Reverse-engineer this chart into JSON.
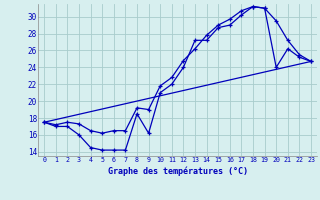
{
  "xlabel": "Graphe des températures (°C)",
  "background_color": "#d7efef",
  "grid_color": "#a8cccc",
  "line_color": "#0000bb",
  "ylim": [
    13.5,
    31.5
  ],
  "xlim": [
    -0.5,
    23.5
  ],
  "yticks": [
    14,
    16,
    18,
    20,
    22,
    24,
    26,
    28,
    30
  ],
  "xticks": [
    0,
    1,
    2,
    3,
    4,
    5,
    6,
    7,
    8,
    9,
    10,
    11,
    12,
    13,
    14,
    15,
    16,
    17,
    18,
    19,
    20,
    21,
    22,
    23
  ],
  "line1_x": [
    0,
    1,
    2,
    3,
    4,
    5,
    6,
    7,
    8,
    9,
    10,
    11,
    12,
    13,
    14,
    15,
    16,
    17,
    18,
    19,
    20,
    21,
    22,
    23
  ],
  "line1_y": [
    17.5,
    17.0,
    17.0,
    16.0,
    14.5,
    14.2,
    14.2,
    14.2,
    18.5,
    16.2,
    21.0,
    22.0,
    24.0,
    27.2,
    27.2,
    28.7,
    29.0,
    30.2,
    31.2,
    31.0,
    29.5,
    27.2,
    25.5,
    24.7
  ],
  "line2_x": [
    0,
    1,
    2,
    3,
    4,
    5,
    6,
    7,
    8,
    9,
    10,
    11,
    12,
    13,
    14,
    15,
    16,
    17,
    18,
    19,
    20,
    21,
    22,
    23
  ],
  "line2_y": [
    17.5,
    17.2,
    17.5,
    17.3,
    16.5,
    16.2,
    16.5,
    16.5,
    19.2,
    19.0,
    21.8,
    22.8,
    24.8,
    26.2,
    27.8,
    29.0,
    29.7,
    30.7,
    31.2,
    31.0,
    24.0,
    26.2,
    25.2,
    24.7
  ],
  "line3_x": [
    0,
    23
  ],
  "line3_y": [
    17.5,
    24.7
  ]
}
